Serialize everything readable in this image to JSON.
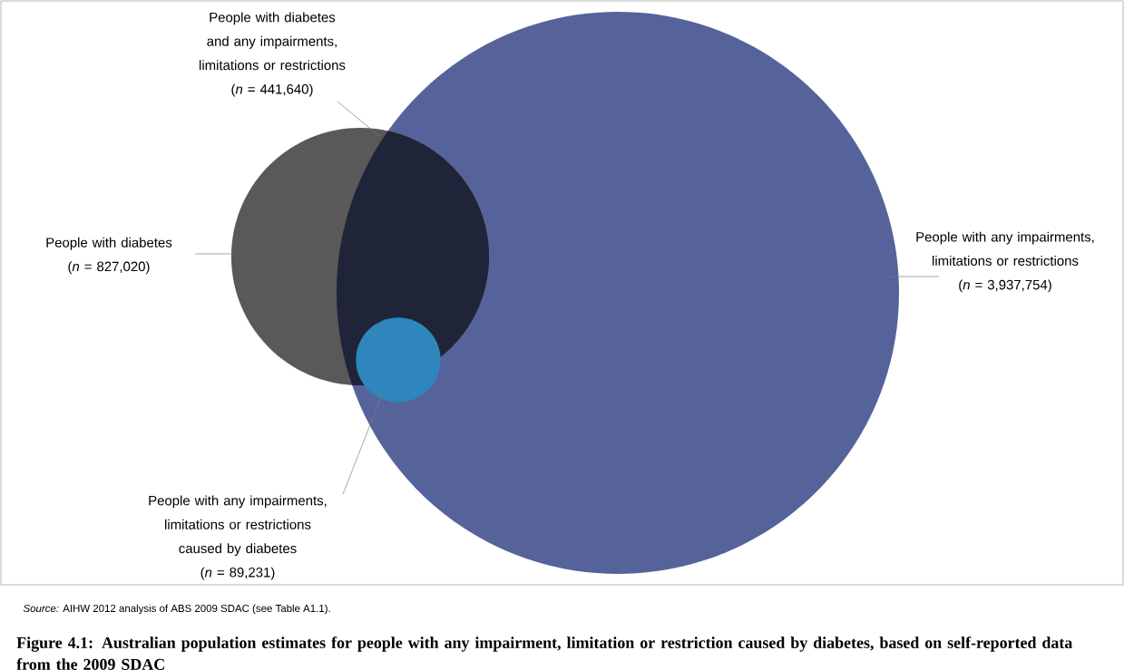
{
  "chart_data": {
    "type": "other",
    "title": "Figure 4.1: Australian population estimates for people with any impairment, limitation or restriction caused by diabetes, based on self-reported data from the 2009 SDAC",
    "categories": [
      "People with diabetes",
      "People with any impairments, limitations or restrictions",
      "People with diabetes and any impairments, limitations or restrictions",
      "People with any impairments, limitations or restrictions caused by diabetes"
    ],
    "values": [
      827020,
      3937754,
      441640,
      89231
    ],
    "value_labels": [
      "(*n* = 827,020)",
      "(*n* = 3,937,754)",
      "(*n* = 441,640)",
      "(*n* = 89,231)"
    ],
    "colors": [
      "#595959",
      "#56639a",
      "#1f2438",
      "#2e86bd"
    ],
    "annotations": [
      "*Source:* AIHW 2012 analysis of ABS 2009 SDAC (see Table A1.1)."
    ]
  }
}
